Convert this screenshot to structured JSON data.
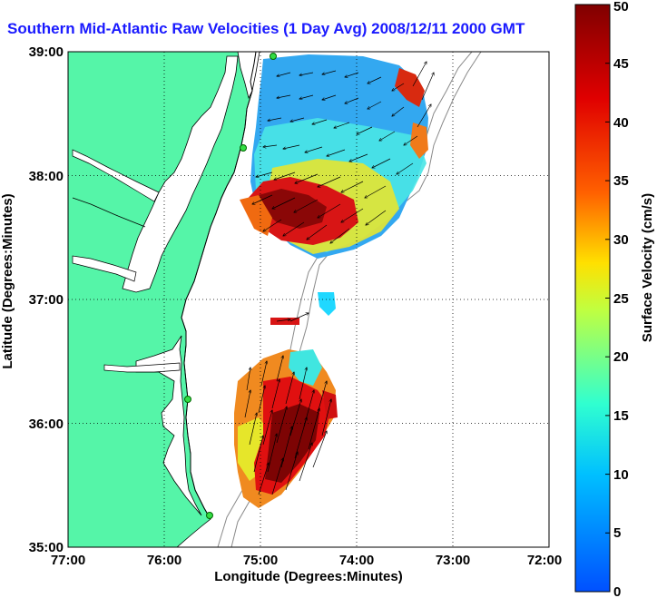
{
  "title": "Southern Mid-Atlantic Raw Velocities (1 Day Avg) 2008/12/11 2000 GMT",
  "map": {
    "x_label": "Longitude (Degrees:Minutes)",
    "y_label": "Latitude (Degrees:Minutes)",
    "x_ticks": [
      "77:00",
      "76:00",
      "75:00",
      "74:00",
      "73:00",
      "72:00"
    ],
    "y_ticks": [
      "39:00",
      "38:00",
      "37:00",
      "36:00",
      "35:00"
    ],
    "lon_range": [
      -77,
      -72
    ],
    "lat_range": [
      35,
      39
    ],
    "land_color": "#55f5a8",
    "ocean_color": "#ffffff",
    "grid": "dotted"
  },
  "colorbar": {
    "label": "Surface Velocity (cm/s)",
    "ticks": [
      "0",
      "5",
      "10",
      "15",
      "20",
      "25",
      "30",
      "35",
      "40",
      "45",
      "50"
    ],
    "range": [
      0,
      50
    ],
    "colors": [
      "#0050ff",
      "#00c0ff",
      "#30ffd0",
      "#c0ff40",
      "#ffe000",
      "#ff6000",
      "#e00000",
      "#800000"
    ]
  },
  "stations": [
    {
      "name": "station-north",
      "lon": -74.86,
      "lat": 38.99
    },
    {
      "name": "station-cape-henlopen",
      "lon": -75.17,
      "lat": 38.22
    },
    {
      "name": "station-duck",
      "lon": -75.73,
      "lat": 36.18
    },
    {
      "name": "station-hatteras",
      "lon": -75.47,
      "lat": 35.25
    }
  ]
}
